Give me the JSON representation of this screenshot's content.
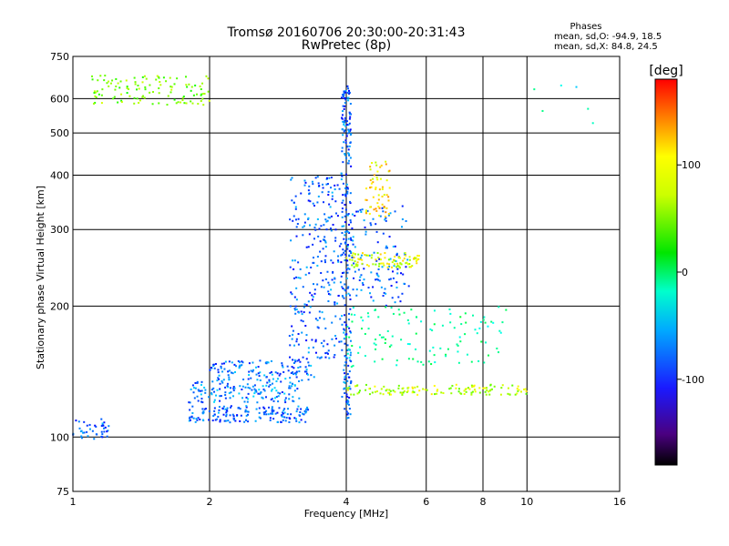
{
  "chart_data": {
    "type": "scatter",
    "title": "Tromsø 20160706 20:30:00-20:31:43",
    "subtitle": "RwPretec (8p)",
    "xlabel": "Frequency [MHz]",
    "ylabel": "Stationary phase Virtual Height [km]",
    "x_scale": "log",
    "y_scale": "log",
    "xlim": [
      1,
      16
    ],
    "ylim": [
      75,
      750
    ],
    "x_ticks": [
      1,
      2,
      4,
      6,
      8,
      10,
      16
    ],
    "y_ticks": [
      75,
      100,
      200,
      300,
      400,
      500,
      600,
      750
    ],
    "grid": true,
    "phases_box": {
      "title": "Phases",
      "line_o": "mean, sd,O: -94.9, 18.5",
      "line_x": "mean, sd,X:  84.8, 24.5"
    },
    "colorbar": {
      "label": "[deg]",
      "min": -180,
      "max": 180,
      "ticks": [
        100,
        0,
        -100
      ]
    },
    "traces": [
      {
        "xmin": 1.0,
        "xmax": 1.2,
        "h0": 98,
        "h1": 110,
        "phase": -100,
        "n": 40
      },
      {
        "xmin": 1.8,
        "xmax": 3.3,
        "h0": 108,
        "h1": 118,
        "phase": -100,
        "n": 160
      },
      {
        "xmin": 1.8,
        "xmax": 3.2,
        "h0": 120,
        "h1": 135,
        "phase": -90,
        "n": 140
      },
      {
        "xmin": 2.0,
        "xmax": 3.4,
        "h0": 135,
        "h1": 150,
        "phase": -95,
        "n": 120
      },
      {
        "xmin": 3.0,
        "xmax": 3.9,
        "h0": 150,
        "h1": 400,
        "phase": -100,
        "n": 260
      },
      {
        "xmin": 3.9,
        "xmax": 4.1,
        "h0": 110,
        "h1": 650,
        "phase": -100,
        "n": 260
      },
      {
        "xmin": 4.1,
        "xmax": 5.5,
        "h0": 200,
        "h1": 340,
        "phase": -100,
        "n": 120
      },
      {
        "xmin": 4.0,
        "xmax": 5.8,
        "h0": 245,
        "h1": 265,
        "phase": 90,
        "n": 90
      },
      {
        "xmin": 4.4,
        "xmax": 5.0,
        "h0": 320,
        "h1": 430,
        "phase": 110,
        "n": 60
      },
      {
        "xmin": 4.0,
        "xmax": 10.0,
        "h0": 125,
        "h1": 132,
        "phase": 80,
        "n": 130
      },
      {
        "xmin": 4.0,
        "xmax": 9.0,
        "h0": 145,
        "h1": 200,
        "phase": -20,
        "n": 120
      },
      {
        "xmin": 1.1,
        "xmax": 2.0,
        "h0": 580,
        "h1": 680,
        "phase": 60,
        "n": 120
      },
      {
        "xmin": 10.0,
        "xmax": 15.0,
        "h0": 480,
        "h1": 650,
        "phase": -40,
        "n": 6
      }
    ]
  }
}
